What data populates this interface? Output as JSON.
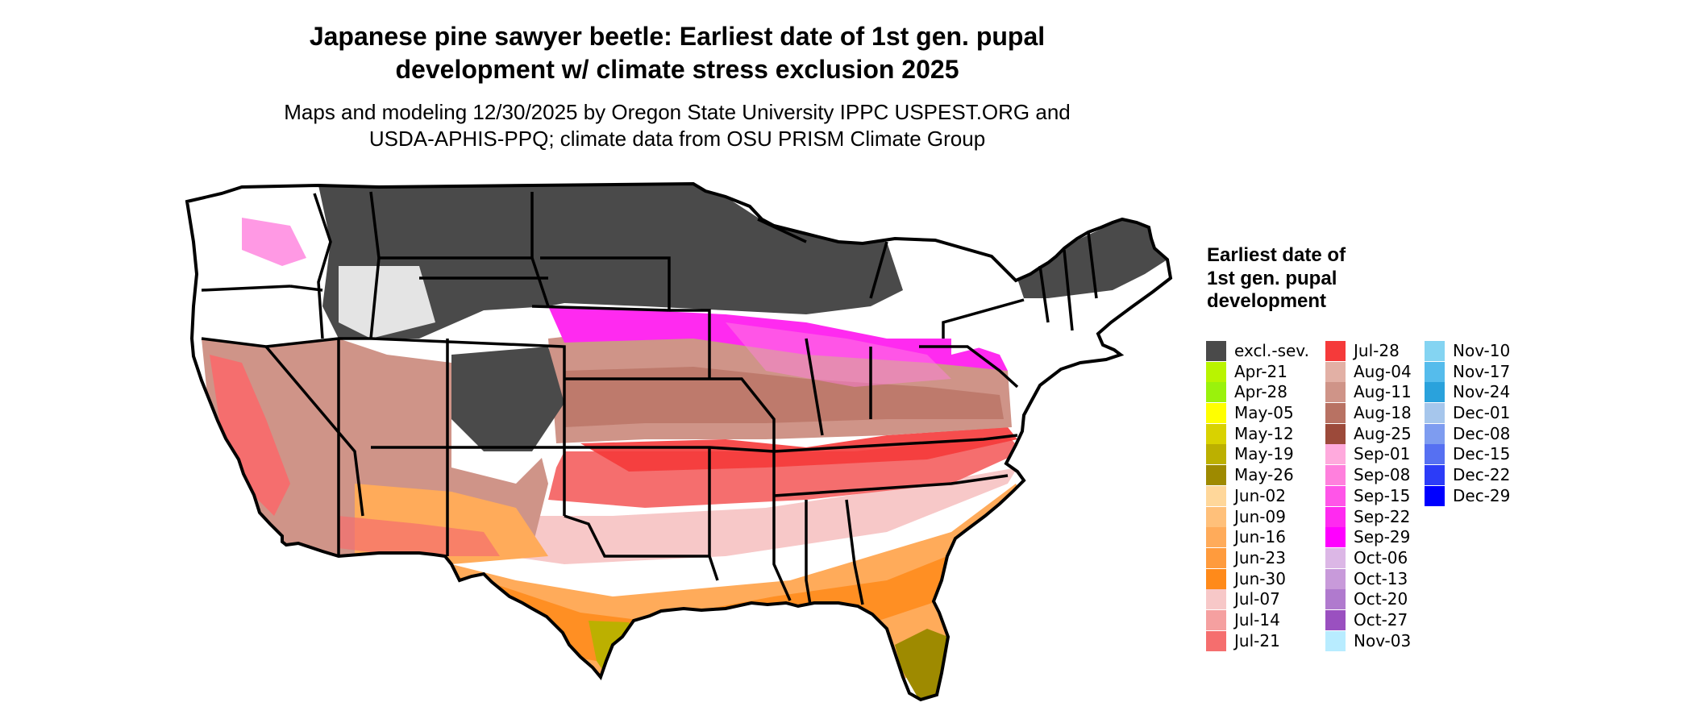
{
  "title_line1": "Japanese pine sawyer beetle: Earliest date of 1st gen. pupal",
  "title_line2": "development w/ climate stress exclusion 2025",
  "subtitle_line1": "Maps and modeling 12/30/2025 by Oregon State University IPPC USPEST.ORG and",
  "subtitle_line2": "USDA-APHIS-PPQ; climate data from OSU PRISM Climate Group",
  "legend": {
    "title": "Earliest date of 1st gen. pupal development",
    "columns": [
      [
        {
          "label": "excl.-sev.",
          "color": "#4a4a4a"
        },
        {
          "label": "Apr-21",
          "color": "#b9f400"
        },
        {
          "label": "Apr-28",
          "color": "#9af20c"
        },
        {
          "label": "May-05",
          "color": "#ffff00"
        },
        {
          "label": "May-12",
          "color": "#d9d200"
        },
        {
          "label": "May-19",
          "color": "#bcb000"
        },
        {
          "label": "May-26",
          "color": "#9e8a00"
        },
        {
          "label": "Jun-02",
          "color": "#ffd79a"
        },
        {
          "label": "Jun-09",
          "color": "#ffc07a"
        },
        {
          "label": "Jun-16",
          "color": "#ffab5a"
        },
        {
          "label": "Jun-23",
          "color": "#ff9b3d"
        },
        {
          "label": "Jun-30",
          "color": "#ff8a1a"
        },
        {
          "label": "Jul-07",
          "color": "#f7c8c8"
        },
        {
          "label": "Jul-14",
          "color": "#f5a0a0"
        },
        {
          "label": "Jul-21",
          "color": "#f56e6e"
        }
      ],
      [
        {
          "label": "Jul-28",
          "color": "#f53a3a"
        },
        {
          "label": "Aug-04",
          "color": "#e2b0a5"
        },
        {
          "label": "Aug-11",
          "color": "#cf9488"
        },
        {
          "label": "Aug-18",
          "color": "#b87263"
        },
        {
          "label": "Aug-25",
          "color": "#9c4a3a"
        },
        {
          "label": "Sep-01",
          "color": "#ffaadd"
        },
        {
          "label": "Sep-08",
          "color": "#ff80dd"
        },
        {
          "label": "Sep-15",
          "color": "#ff55e8"
        },
        {
          "label": "Sep-22",
          "color": "#ff2af0"
        },
        {
          "label": "Sep-29",
          "color": "#ff00ff"
        },
        {
          "label": "Oct-06",
          "color": "#dcb7e6"
        },
        {
          "label": "Oct-13",
          "color": "#c89ada"
        },
        {
          "label": "Oct-20",
          "color": "#b07ace"
        },
        {
          "label": "Oct-27",
          "color": "#9a50c0"
        },
        {
          "label": "Nov-03",
          "color": "#b8ecff"
        }
      ],
      [
        {
          "label": "Nov-10",
          "color": "#84d4f2"
        },
        {
          "label": "Nov-17",
          "color": "#55bcec"
        },
        {
          "label": "Nov-24",
          "color": "#2aa2dc"
        },
        {
          "label": "Dec-01",
          "color": "#a6c6ec"
        },
        {
          "label": "Dec-08",
          "color": "#7e9cf0"
        },
        {
          "label": "Dec-15",
          "color": "#5670f2"
        },
        {
          "label": "Dec-22",
          "color": "#2c3cf8"
        },
        {
          "label": "Dec-29",
          "color": "#0000ff"
        }
      ]
    ]
  }
}
